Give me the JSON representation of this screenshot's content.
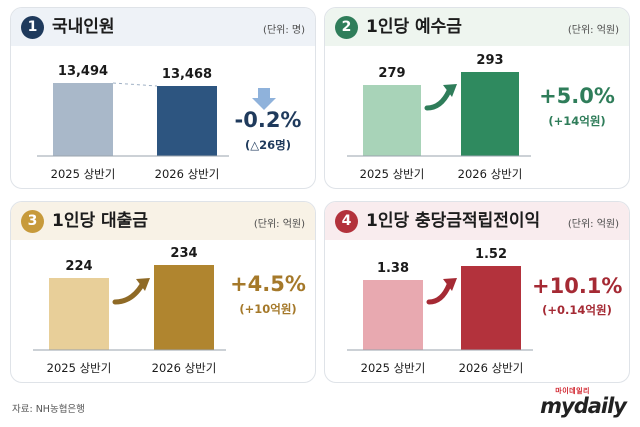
{
  "colors": {
    "accent_navy": "#1f3a5c",
    "accent_green": "#2f7d5a",
    "accent_gold": "#c79a3b",
    "accent_red": "#b3323c"
  },
  "panels": [
    {
      "number": "1",
      "title": "국내인원",
      "unit": "(단위: 명)",
      "change": "-0.2%",
      "change_sub": "(△26명)",
      "trend": "down"
    },
    {
      "number": "2",
      "title": "1인당 예수금",
      "unit": "(단위: 억원)",
      "change": "+5.0%",
      "change_sub": "(+14억원)",
      "trend": "up"
    },
    {
      "number": "3",
      "title": "1인당 대출금",
      "unit": "(단위: 억원)",
      "change": "+4.5%",
      "change_sub": "(+10억원)",
      "trend": "up"
    },
    {
      "number": "4",
      "title": "1인당 충당금적립전이익",
      "unit": "(단위: 억원)",
      "change": "+10.1%",
      "change_sub": "(+0.14억원)",
      "trend": "up"
    }
  ],
  "chart_data": [
    {
      "type": "bar",
      "title": "국내인원",
      "categories": [
        "2025 상반기",
        "2026 상반기"
      ],
      "values": [
        13494,
        13468
      ],
      "value_labels": [
        "13,494",
        "13,468"
      ],
      "unit": "명"
    },
    {
      "type": "bar",
      "title": "1인당 예수금",
      "categories": [
        "2025 상반기",
        "2026 상반기"
      ],
      "values": [
        279,
        293
      ],
      "value_labels": [
        "279",
        "293"
      ],
      "unit": "억원"
    },
    {
      "type": "bar",
      "title": "1인당 대출금",
      "categories": [
        "2025 상반기",
        "2026 상반기"
      ],
      "values": [
        224,
        234
      ],
      "value_labels": [
        "224",
        "234"
      ],
      "unit": "억원"
    },
    {
      "type": "bar",
      "title": "1인당 충당금적립전이익",
      "categories": [
        "2025 상반기",
        "2026 상반기"
      ],
      "values": [
        1.38,
        1.52
      ],
      "value_labels": [
        "1.38",
        "1.52"
      ],
      "unit": "억원"
    }
  ],
  "footer": {
    "source": "자료: NH농협은행",
    "logo_top": "마이데일리",
    "logo_main": "mydaily"
  }
}
